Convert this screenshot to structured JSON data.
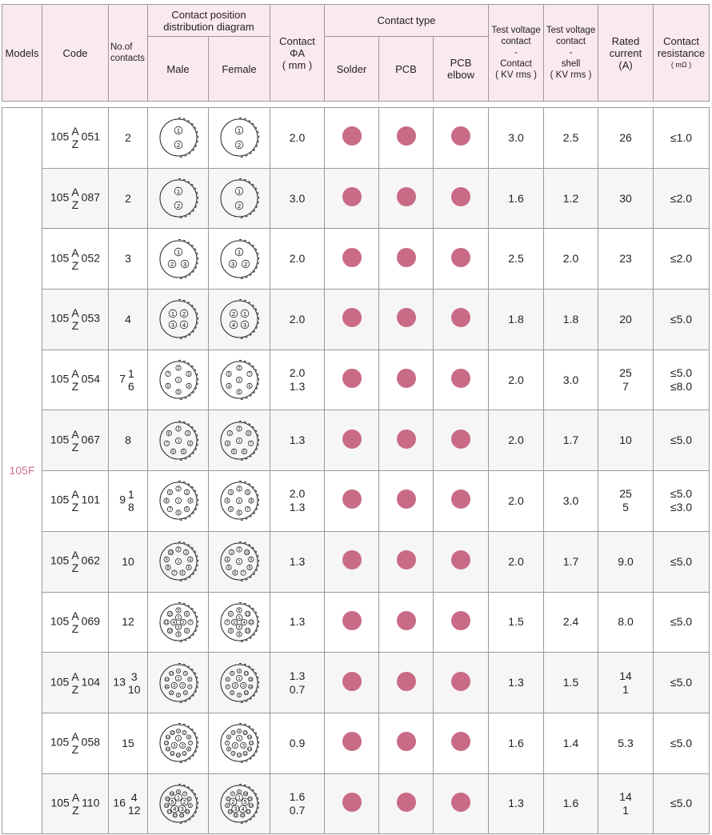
{
  "header": {
    "models": "Models",
    "code": "Code",
    "contacts": "No.of contacts",
    "diagram": "Contact position distribution diagram",
    "male": "Male",
    "female": "Female",
    "phi": [
      "Contact",
      "ΦA",
      "( mm )"
    ],
    "contact_type": "Contact type",
    "solder": "Solder",
    "pcb": "PCB",
    "pcb_elbow": [
      "PCB",
      "elbow"
    ],
    "tv1": [
      "Test voltage",
      "contact",
      "-",
      "Contact",
      "( KV rms )"
    ],
    "tv2": [
      "Test voltage",
      "contact",
      "-",
      "shell",
      "( KV rms )"
    ],
    "rated": [
      "Rated",
      "current",
      "(A)"
    ],
    "resist": [
      "Contact",
      "resistance",
      "( mΩ )"
    ]
  },
  "model": "105F",
  "colors": {
    "header_bg": "#fbe9f0",
    "dot": "#c96a86",
    "model": "#d0718f"
  },
  "rows": [
    {
      "prefix": "105",
      "a": "A",
      "z": "Z",
      "code": "051",
      "contacts": "2",
      "split": null,
      "pins": 2,
      "phi": [
        "2.0"
      ],
      "tv1": "3.0",
      "tv2": "2.5",
      "rated": [
        "26"
      ],
      "res": [
        "≤1.0"
      ]
    },
    {
      "prefix": "105",
      "a": "A",
      "z": "Z",
      "code": "087",
      "contacts": "2",
      "split": null,
      "pins": 2,
      "phi": [
        "3.0"
      ],
      "tv1": "1.6",
      "tv2": "1.2",
      "rated": [
        "30"
      ],
      "res": [
        "≤2.0"
      ]
    },
    {
      "prefix": "105",
      "a": "A",
      "z": "Z",
      "code": "052",
      "contacts": "3",
      "split": null,
      "pins": 3,
      "phi": [
        "2.0"
      ],
      "tv1": "2.5",
      "tv2": "2.0",
      "rated": [
        "23"
      ],
      "res": [
        "≤2.0"
      ]
    },
    {
      "prefix": "105",
      "a": "A",
      "z": "Z",
      "code": "053",
      "contacts": "4",
      "split": null,
      "pins": 4,
      "phi": [
        "2.0"
      ],
      "tv1": "1.8",
      "tv2": "1.8",
      "rated": [
        "20"
      ],
      "res": [
        "≤5.0"
      ]
    },
    {
      "prefix": "105",
      "a": "A",
      "z": "Z",
      "code": "054",
      "contacts": "7",
      "split": [
        "1",
        "6"
      ],
      "pins": 7,
      "phi": [
        "2.0",
        "1.3"
      ],
      "tv1": "2.0",
      "tv2": "3.0",
      "rated": [
        "25",
        "7"
      ],
      "res": [
        "≤5.0",
        "≤8.0"
      ]
    },
    {
      "prefix": "105",
      "a": "A",
      "z": "Z",
      "code": "067",
      "contacts": "8",
      "split": null,
      "pins": 8,
      "phi": [
        "1.3"
      ],
      "tv1": "2.0",
      "tv2": "1.7",
      "rated": [
        "10"
      ],
      "res": [
        "≤5.0"
      ]
    },
    {
      "prefix": "105",
      "a": "A",
      "z": "Z",
      "code": "101",
      "contacts": "9",
      "split": [
        "1",
        "8"
      ],
      "pins": 9,
      "phi": [
        "2.0",
        "1.3"
      ],
      "tv1": "2.0",
      "tv2": "3.0",
      "rated": [
        "25",
        "5"
      ],
      "res": [
        "≤5.0",
        "≤3.0"
      ]
    },
    {
      "prefix": "105",
      "a": "A",
      "z": "Z",
      "code": "062",
      "contacts": "10",
      "split": null,
      "pins": 10,
      "phi": [
        "1.3"
      ],
      "tv1": "2.0",
      "tv2": "1.7",
      "rated": [
        "9.0"
      ],
      "res": [
        "≤5.0"
      ]
    },
    {
      "prefix": "105",
      "a": "A",
      "z": "Z",
      "code": "069",
      "contacts": "12",
      "split": null,
      "pins": 12,
      "phi": [
        "1.3"
      ],
      "tv1": "1.5",
      "tv2": "2.4",
      "rated": [
        "8.0"
      ],
      "res": [
        "≤5.0"
      ]
    },
    {
      "prefix": "105",
      "a": "A",
      "z": "Z",
      "code": "104",
      "contacts": "13",
      "split": [
        "3",
        "10"
      ],
      "pins": 13,
      "phi": [
        "1.3",
        "0.7"
      ],
      "tv1": "1.3",
      "tv2": "1.5",
      "rated": [
        "14",
        "1"
      ],
      "res": [
        "≤5.0"
      ]
    },
    {
      "prefix": "105",
      "a": "A",
      "z": "Z",
      "code": "058",
      "contacts": "15",
      "split": null,
      "pins": 15,
      "phi": [
        "0.9"
      ],
      "tv1": "1.6",
      "tv2": "1.4",
      "rated": [
        "5.3"
      ],
      "res": [
        "≤5.0"
      ]
    },
    {
      "prefix": "105",
      "a": "A",
      "z": "Z",
      "code": "110",
      "contacts": "16",
      "split": [
        "4",
        "12"
      ],
      "pins": 16,
      "phi": [
        "1.6",
        "0.7"
      ],
      "tv1": "1.3",
      "tv2": "1.6",
      "rated": [
        "14",
        "1"
      ],
      "res": [
        "≤5.0"
      ]
    }
  ]
}
